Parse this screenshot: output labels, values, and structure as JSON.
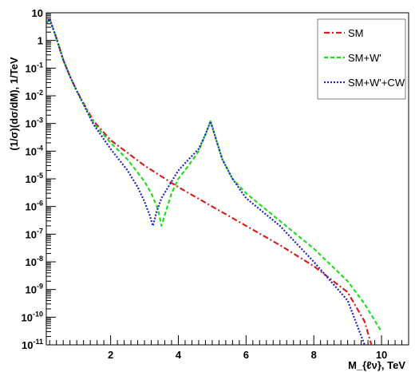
{
  "chart_data": {
    "type": "line",
    "xlabel": "M_{ℓν}, TeV",
    "ylabel": "(1/σ)(dσ/dM), 1/TeV",
    "xlim": [
      0.1,
      10.8
    ],
    "ylim_log10": [
      -11,
      1
    ],
    "y_scale": "log",
    "x_ticks": [
      2,
      4,
      6,
      8,
      10
    ],
    "y_ticks": [
      {
        "base": "10",
        "exp": "-11",
        "value": -11
      },
      {
        "base": "10",
        "exp": "-10",
        "value": -10
      },
      {
        "base": "10",
        "exp": "-9",
        "value": -9
      },
      {
        "base": "10",
        "exp": "-8",
        "value": -8
      },
      {
        "base": "10",
        "exp": "-7",
        "value": -7
      },
      {
        "base": "10",
        "exp": "-6",
        "value": -6
      },
      {
        "base": "10",
        "exp": "-5",
        "value": -5
      },
      {
        "base": "10",
        "exp": "-4",
        "value": -4
      },
      {
        "base": "10",
        "exp": "-3",
        "value": -3
      },
      {
        "base": "10",
        "exp": "-2",
        "value": -2
      },
      {
        "base": "10",
        "exp": "-1",
        "value": -1
      },
      {
        "base": "1",
        "exp": "",
        "value": 0
      },
      {
        "base": "10",
        "exp": "",
        "value": 1
      }
    ],
    "legend_position": "top-right",
    "series": [
      {
        "name": "SM",
        "color": "#d42020",
        "dash": "dash-dot",
        "x": [
          0.1,
          0.2,
          0.4,
          0.6,
          0.8,
          1.0,
          1.5,
          2.0,
          3.0,
          4.0,
          5.0,
          6.0,
          7.0,
          8.0,
          9.0,
          9.5,
          9.7
        ],
        "y": [
          4,
          6,
          1.2,
          0.2,
          0.05,
          0.015,
          0.0012,
          0.00025,
          3e-05,
          5e-06,
          1e-06,
          2e-07,
          4e-08,
          7e-09,
          8e-10,
          7e-11,
          1e-11
        ]
      },
      {
        "name": "SM+W'",
        "color": "#22dd22",
        "dash": "dashed",
        "x": [
          0.1,
          0.2,
          0.4,
          0.6,
          0.8,
          1.0,
          1.5,
          2.0,
          2.5,
          3.0,
          3.2,
          3.4,
          3.5,
          3.6,
          3.8,
          4.0,
          4.3,
          4.6,
          4.8,
          4.95,
          5.1,
          5.3,
          5.6,
          6.0,
          7.0,
          8.0,
          9.0,
          9.5,
          10.0
        ],
        "y": [
          4,
          6,
          1.2,
          0.2,
          0.05,
          0.015,
          0.001,
          0.0002,
          5e-05,
          8e-06,
          3e-06,
          8e-07,
          2e-07,
          5e-07,
          3e-06,
          1e-05,
          3e-05,
          0.0001,
          0.0004,
          0.0012,
          0.0003,
          5e-05,
          1e-05,
          3e-06,
          3e-07,
          3e-08,
          2e-09,
          3e-10,
          3e-11
        ]
      },
      {
        "name": "SM+W'+CW",
        "color": "#2222cc",
        "dash": "dotted",
        "x": [
          0.1,
          0.2,
          0.4,
          0.6,
          0.8,
          1.0,
          1.5,
          2.0,
          2.5,
          2.8,
          3.0,
          3.15,
          3.25,
          3.35,
          3.5,
          3.8,
          4.0,
          4.3,
          4.6,
          4.8,
          4.95,
          5.1,
          5.3,
          5.6,
          6.0,
          7.0,
          8.0,
          9.0,
          9.5
        ],
        "y": [
          4,
          6,
          1.2,
          0.2,
          0.05,
          0.015,
          0.0009,
          0.00012,
          2e-05,
          5e-06,
          1.5e-06,
          5e-07,
          2e-07,
          6e-07,
          2e-06,
          8e-06,
          2e-05,
          5e-05,
          0.00012,
          0.0004,
          0.0012,
          0.0003,
          5e-05,
          1e-05,
          2e-06,
          2e-07,
          1e-08,
          4e-10,
          1e-11
        ]
      }
    ]
  }
}
